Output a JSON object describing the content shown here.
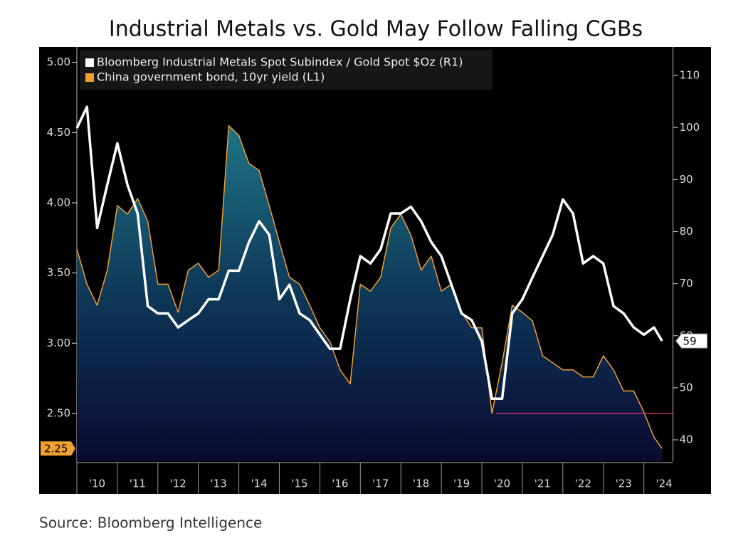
{
  "chart_data": {
    "type": "line",
    "title": "Industrial Metals vs. Gold May Follow Falling CGBs",
    "source": "Source: Bloomberg Intelligence",
    "x": [
      2010,
      2010.25,
      2010.5,
      2010.75,
      2011,
      2011.25,
      2011.5,
      2011.75,
      2012,
      2012.25,
      2012.5,
      2012.75,
      2013,
      2013.25,
      2013.5,
      2013.75,
      2014,
      2014.25,
      2014.5,
      2014.75,
      2015,
      2015.25,
      2015.5,
      2015.75,
      2016,
      2016.25,
      2016.5,
      2016.75,
      2017,
      2017.25,
      2017.5,
      2017.75,
      2018,
      2018.25,
      2018.5,
      2018.75,
      2019,
      2019.25,
      2019.5,
      2019.75,
      2020,
      2020.25,
      2020.5,
      2020.75,
      2021,
      2021.25,
      2021.5,
      2021.75,
      2022,
      2022.25,
      2022.5,
      2022.75,
      2023,
      2023.25,
      2023.5,
      2023.75,
      2024,
      2024.25,
      2024.45
    ],
    "series": [
      {
        "name": "Bloomberg Industrial Metals Spot Subindex / Gold Spot $Oz (R1)",
        "color": "#ffffff",
        "axis": "y2",
        "values": [
          99.9,
          104,
          80.7,
          89,
          97,
          89,
          83.5,
          65.7,
          64.3,
          64.3,
          61.6,
          63,
          64.3,
          67,
          67,
          72.5,
          72.5,
          78,
          82,
          79.4,
          67,
          69.8,
          64.3,
          63,
          60.2,
          57.5,
          57.5,
          67,
          75.3,
          73.9,
          76.6,
          83.5,
          83.5,
          84.8,
          82,
          78,
          75.3,
          69.8,
          64.3,
          63,
          58.9,
          47.9,
          47.9,
          64.3,
          67,
          71.2,
          75.3,
          79.4,
          86.2,
          83.5,
          73.9,
          75.3,
          73.9,
          65.7,
          64.3,
          61.6,
          60.2,
          61.6,
          59
        ]
      },
      {
        "name": "China government bond, 10yr yield (L1)",
        "color": "#f0a030",
        "axis": "y",
        "area": true,
        "values": [
          3.67,
          3.42,
          3.27,
          3.52,
          3.98,
          3.92,
          4.03,
          3.87,
          3.42,
          3.42,
          3.22,
          3.52,
          3.57,
          3.47,
          3.52,
          4.55,
          4.48,
          4.28,
          4.23,
          3.98,
          3.72,
          3.47,
          3.42,
          3.27,
          3.11,
          3.01,
          2.81,
          2.71,
          3.42,
          3.37,
          3.47,
          3.82,
          3.92,
          3.77,
          3.52,
          3.62,
          3.37,
          3.42,
          3.22,
          3.11,
          3.11,
          2.5,
          2.86,
          3.27,
          3.22,
          3.16,
          2.91,
          2.86,
          2.81,
          2.81,
          2.76,
          2.76,
          2.91,
          2.81,
          2.66,
          2.66,
          2.51,
          2.33,
          2.25
        ]
      }
    ],
    "xlim": [
      2010,
      2024.72
    ],
    "xticks": [
      {
        "value": 2010,
        "label": "'10"
      },
      {
        "value": 2011,
        "label": "'11"
      },
      {
        "value": 2012,
        "label": "'12"
      },
      {
        "value": 2013,
        "label": "'13"
      },
      {
        "value": 2014,
        "label": "'14"
      },
      {
        "value": 2015,
        "label": "'15"
      },
      {
        "value": 2016,
        "label": "'16"
      },
      {
        "value": 2017,
        "label": "'17"
      },
      {
        "value": 2018,
        "label": "'18"
      },
      {
        "value": 2019,
        "label": "'19"
      },
      {
        "value": 2020,
        "label": "'20"
      },
      {
        "value": 2021,
        "label": "'21"
      },
      {
        "value": 2022,
        "label": "'22"
      },
      {
        "value": 2023,
        "label": "'23"
      },
      {
        "value": 2024,
        "label": "'24"
      }
    ],
    "ylim": [
      2.16,
      5.11
    ],
    "yticks": [
      {
        "value": 2.5,
        "label": "2.50"
      },
      {
        "value": 3,
        "label": "3.00"
      },
      {
        "value": 3.5,
        "label": "3.50"
      },
      {
        "value": 4,
        "label": "4.00"
      },
      {
        "value": 4.5,
        "label": "4.50"
      },
      {
        "value": 5,
        "label": "5.00"
      }
    ],
    "y2lim": [
      35.9,
      115.5
    ],
    "y2ticks": [
      40,
      50,
      60,
      70,
      80,
      90,
      100,
      110
    ],
    "reference_line": {
      "value": 2.5,
      "x_from": 2020.35,
      "color": "#c8306e"
    },
    "legend": "top-left"
  }
}
